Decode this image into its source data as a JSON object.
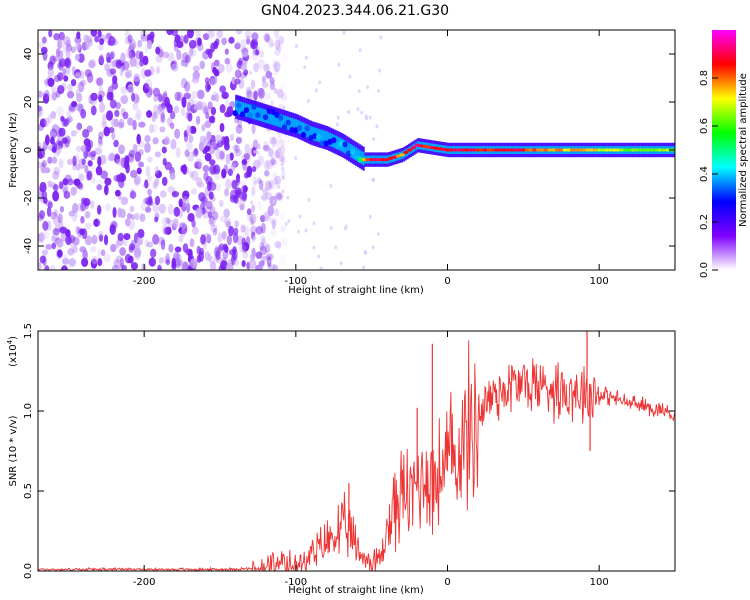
{
  "title": "GN04.2023.344.06.21.G30",
  "chart_data": [
    {
      "type": "heatmap",
      "xlabel": "Height of straight line (km)",
      "ylabel": "Frequency (Hz)",
      "xlim": [
        -270,
        150
      ],
      "ylim": [
        -50,
        50
      ],
      "x_ticks": [
        -200,
        -100,
        0,
        100
      ],
      "x_tick_labels": [
        "-200",
        "-100",
        "0",
        "100"
      ],
      "y_ticks": [
        40,
        20,
        0,
        -20,
        -40
      ],
      "y_tick_labels": [
        "40",
        "20",
        "0",
        "-20",
        "-40"
      ],
      "colorbar": {
        "label": "Normalized spectral amplitude",
        "range": [
          0,
          1
        ],
        "ticks": [
          0.0,
          0.2,
          0.4,
          0.6,
          0.8
        ],
        "tick_labels": [
          "0.0",
          "0.2",
          "0.4",
          "0.6",
          "0.8"
        ],
        "colors": [
          "#ffffff",
          "#8000ff",
          "#0000ff",
          "#00ffff",
          "#00ff00",
          "#ffff00",
          "#ff0000",
          "#ff00ff"
        ]
      },
      "noise_region": {
        "x": [
          -270,
          -130
        ],
        "freq_range": [
          -50,
          50
        ],
        "amplitude": 0.1
      },
      "signal_track": {
        "x": [
          -140,
          -130,
          -120,
          -110,
          -100,
          -90,
          -80,
          -70,
          -60,
          -55,
          -50,
          -40,
          -30,
          -20,
          -10,
          0,
          20,
          40,
          60,
          80,
          90,
          100,
          120,
          150
        ],
        "frequency": [
          18,
          16,
          14,
          12,
          10,
          7,
          5,
          2,
          -2,
          -4,
          -4,
          -4,
          -2,
          2,
          1,
          0,
          0,
          0,
          0,
          0,
          0,
          0,
          0,
          0
        ],
        "amplitude": [
          0.3,
          0.35,
          0.3,
          0.35,
          0.3,
          0.35,
          0.3,
          0.35,
          0.35,
          0.8,
          0.9,
          0.9,
          0.8,
          0.9,
          0.85,
          0.9,
          0.85,
          0.9,
          0.8,
          0.75,
          0.8,
          0.7,
          0.65,
          0.65
        ]
      }
    },
    {
      "type": "line",
      "xlabel": "Height of straight line (km)",
      "ylabel": "SNR (10 * v/v)",
      "y_multiplier_label": "(x10",
      "y_multiplier_exp": "4",
      "xlim": [
        -270,
        150
      ],
      "ylim": [
        0,
        1.5
      ],
      "x_ticks": [
        -200,
        -100,
        0,
        100
      ],
      "x_tick_labels": [
        "-200",
        "-100",
        "0",
        "100"
      ],
      "y_ticks": [
        0.0,
        0.5,
        1.0,
        1.5
      ],
      "y_tick_labels": [
        "0.0",
        "0.5",
        "1.0",
        "1.5"
      ],
      "color": "#ee3333",
      "series": [
        {
          "x": [
            -270,
            -240,
            -210,
            -180,
            -150,
            -130,
            -120,
            -110,
            -100,
            -90,
            -85,
            -80,
            -75,
            -70,
            -65,
            -60,
            -55,
            -50,
            -45,
            -42,
            -40,
            -35,
            -30,
            -25,
            -20,
            -15,
            -10,
            -5,
            0,
            5,
            10,
            15,
            20,
            25,
            30,
            35,
            40,
            45,
            50,
            55,
            60,
            65,
            70,
            75,
            80,
            85,
            90,
            95,
            100,
            110,
            120,
            130,
            140,
            150
          ],
          "y": [
            0.01,
            0.01,
            0.01,
            0.01,
            0.01,
            0.015,
            0.02,
            0.03,
            0.05,
            0.09,
            0.13,
            0.18,
            0.22,
            0.26,
            0.25,
            0.14,
            0.08,
            0.05,
            0.07,
            0.15,
            0.25,
            0.4,
            0.48,
            0.46,
            0.55,
            0.62,
            0.55,
            0.6,
            0.68,
            0.72,
            0.8,
            0.88,
            0.97,
            1.05,
            1.1,
            1.13,
            1.15,
            1.16,
            1.17,
            1.17,
            1.16,
            1.16,
            1.15,
            1.14,
            1.13,
            1.13,
            1.12,
            1.12,
            1.11,
            1.08,
            1.05,
            1.03,
            1.01,
            0.98
          ]
        }
      ],
      "spikes": [
        {
          "x": -10,
          "y": 1.42
        },
        {
          "x": -20,
          "y": 1.02
        },
        {
          "x": 92,
          "y": 1.5
        },
        {
          "x": 94,
          "y": 0.75
        },
        {
          "x": -65,
          "y": 0.55
        }
      ]
    }
  ]
}
